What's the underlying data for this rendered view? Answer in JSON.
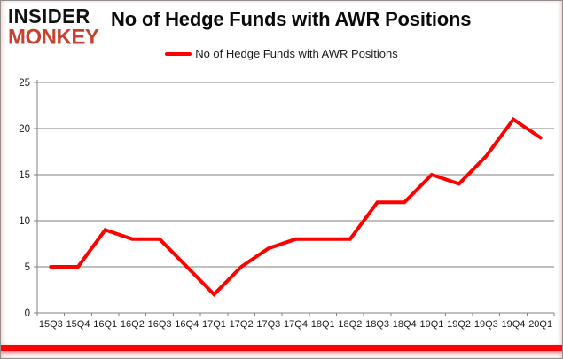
{
  "logo": {
    "line1": "INSIDER",
    "line2": "MONKEY"
  },
  "header": {
    "title": "No of Hedge Funds with AWR Positions"
  },
  "legend": {
    "label": "No of Hedge Funds with AWR Positions"
  },
  "colors": {
    "line": "#fe0000",
    "logo_red": "#c8432f",
    "grid": "#808080",
    "axis_text": "#1a1a1a",
    "bottom_bar": "#fb0207"
  },
  "chart_data": {
    "type": "line",
    "title": "No of Hedge Funds with AWR Positions",
    "categories": [
      "15Q3",
      "15Q4",
      "16Q1",
      "16Q2",
      "16Q3",
      "16Q4",
      "17Q1",
      "17Q2",
      "17Q3",
      "17Q4",
      "18Q1",
      "18Q2",
      "18Q3",
      "18Q4",
      "19Q1",
      "19Q2",
      "19Q3",
      "19Q4",
      "20Q1"
    ],
    "series": [
      {
        "name": "No of Hedge Funds with AWR Positions",
        "values": [
          5,
          5,
          9,
          8,
          8,
          5,
          2,
          5,
          7,
          8,
          8,
          8,
          12,
          12,
          15,
          14,
          17,
          21,
          19
        ],
        "color": "#fe0000"
      }
    ],
    "xlabel": "",
    "ylabel": "",
    "ylim": [
      0,
      25
    ],
    "ytick_step": 5,
    "grid": true,
    "legend_position": "top-center"
  }
}
